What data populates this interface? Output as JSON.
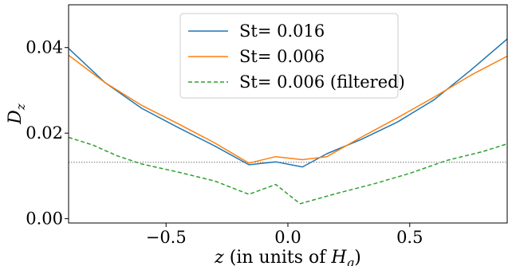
{
  "chart_data": {
    "type": "line",
    "title": "",
    "xlabel": {
      "italic": "z",
      "rest": " (in units of ",
      "sym": "H",
      "sub": "g",
      "close": ")"
    },
    "ylabel": {
      "sym": "D",
      "sub": "z"
    },
    "xlim": [
      -0.9,
      0.9
    ],
    "ylim": [
      -0.001,
      0.05
    ],
    "xticks": [
      {
        "value": -0.5,
        "label": "−0.5"
      },
      {
        "value": 0.0,
        "label": "0.0"
      },
      {
        "value": 0.5,
        "label": "0.5"
      }
    ],
    "yticks": [
      {
        "value": 0.0,
        "label": "0.00"
      },
      {
        "value": 0.02,
        "label": "0.02"
      },
      {
        "value": 0.04,
        "label": "0.04"
      }
    ],
    "grid": false,
    "legend_position": "top-center",
    "reference_line": {
      "y": 0.0132,
      "color": "#555555",
      "style": "dotted"
    },
    "series": [
      {
        "name": "St= 0.016",
        "color": "#1f77b4",
        "style": "solid",
        "x": [
          -0.9,
          -0.75,
          -0.6,
          -0.45,
          -0.3,
          -0.16,
          -0.05,
          0.06,
          0.16,
          0.3,
          0.45,
          0.6,
          0.75,
          0.9
        ],
        "y": [
          0.0398,
          0.0318,
          0.0258,
          0.0213,
          0.017,
          0.0126,
          0.0133,
          0.0121,
          0.0152,
          0.0185,
          0.0226,
          0.0278,
          0.0347,
          0.042
        ]
      },
      {
        "name": "St= 0.006",
        "color": "#ff7f0e",
        "style": "solid",
        "x": [
          -0.9,
          -0.75,
          -0.6,
          -0.45,
          -0.3,
          -0.16,
          -0.05,
          0.06,
          0.16,
          0.3,
          0.45,
          0.6,
          0.75,
          0.9
        ],
        "y": [
          0.0382,
          0.0318,
          0.0265,
          0.0222,
          0.0177,
          0.013,
          0.0145,
          0.0138,
          0.0145,
          0.019,
          0.0236,
          0.0284,
          0.0335,
          0.038
        ]
      },
      {
        "name": "St= 0.006 (filtered)",
        "color": "#2ca02c",
        "style": "dashed",
        "x": [
          -0.9,
          -0.8,
          -0.7,
          -0.6,
          -0.45,
          -0.3,
          -0.16,
          -0.05,
          0.05,
          0.2,
          0.35,
          0.5,
          0.65,
          0.8,
          0.9
        ],
        "y": [
          0.019,
          0.0172,
          0.0147,
          0.0128,
          0.0109,
          0.0088,
          0.0057,
          0.008,
          0.0035,
          0.0059,
          0.0081,
          0.0106,
          0.0136,
          0.0157,
          0.0175
        ]
      }
    ]
  }
}
